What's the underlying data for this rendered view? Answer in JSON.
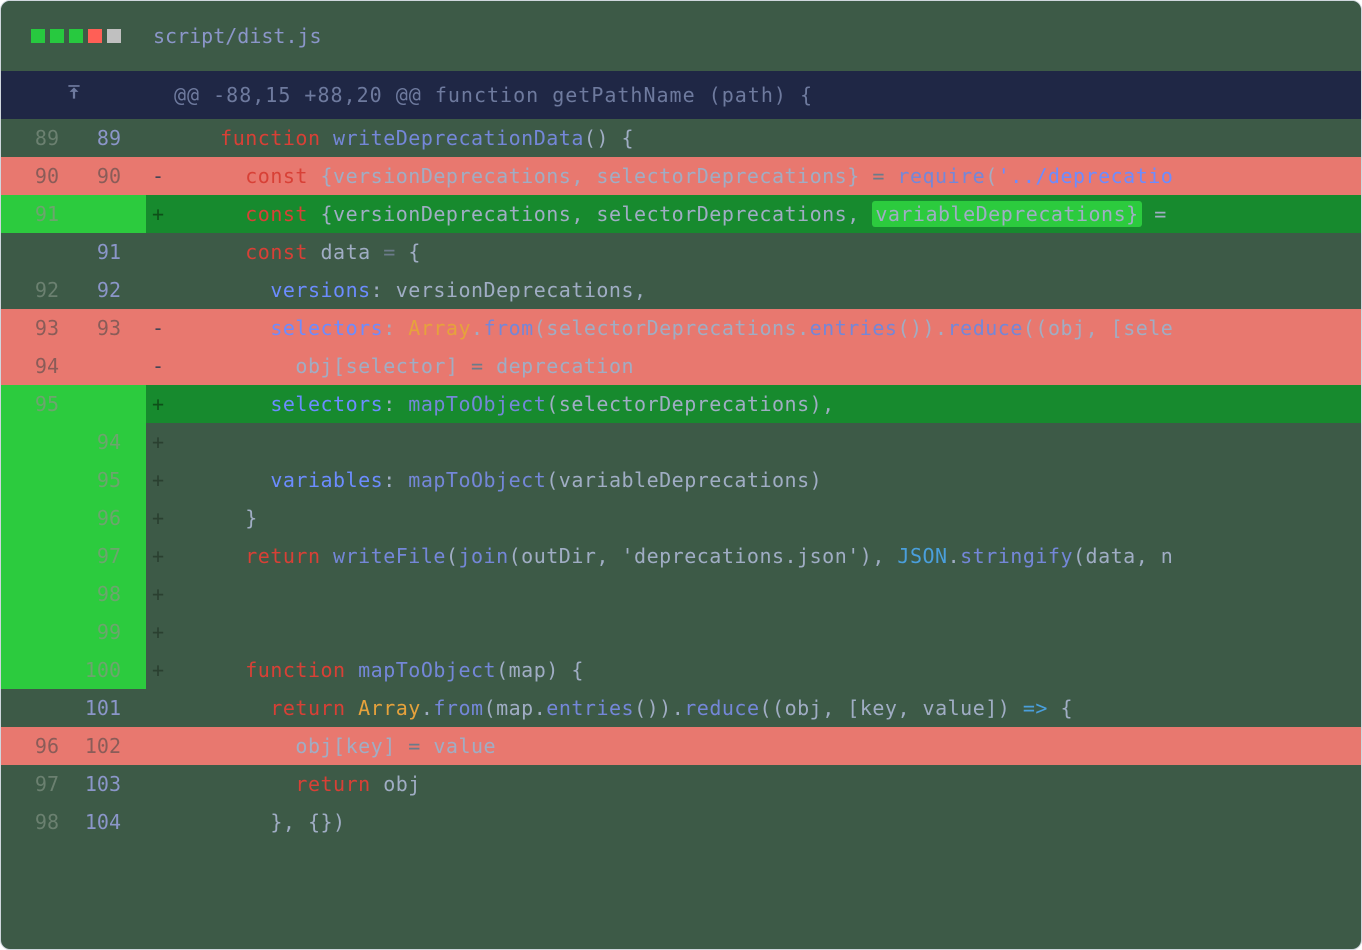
{
  "colors": {
    "window_bg": "#3d5a47",
    "hunk_bg": "#1f2745",
    "deletion_bg": "#e8786f",
    "addition_bg": "#178a2e",
    "addition_gutter": "#2ccb3e",
    "dot_green": "#27c93f",
    "dot_red": "#ff5f56",
    "dot_gray": "#c0c0c0",
    "filename_color": "#8b96c9"
  },
  "filename": "script/dist.js",
  "hunk_header": "@@ -88,15 +88,20 @@ function getPathName (path) {",
  "lines": [
    {
      "type": "context",
      "old": "89",
      "new": "89",
      "marker": " ",
      "tokens": [
        {
          "t": "    ",
          "c": "plain"
        },
        {
          "t": "function ",
          "c": "kw"
        },
        {
          "t": "writeDeprecationData",
          "c": "fn"
        },
        {
          "t": "() {",
          "c": "plain"
        }
      ]
    },
    {
      "type": "deletion",
      "old": "90",
      "new": "90",
      "marker": "-",
      "tokens": [
        {
          "t": "      ",
          "c": "plain"
        },
        {
          "t": "const ",
          "c": "kw"
        },
        {
          "t": "{versionDeprecations, selectorDeprecations} ",
          "c": "plain"
        },
        {
          "t": "= ",
          "c": "dim"
        },
        {
          "t": "require",
          "c": "fn"
        },
        {
          "t": "(",
          "c": "plain"
        },
        {
          "t": "'../deprecatio",
          "c": "prop"
        }
      ]
    },
    {
      "type": "addition",
      "old": "91",
      "new": "",
      "marker": "+",
      "tokens": [
        {
          "t": "      ",
          "c": "plain"
        },
        {
          "t": "const ",
          "c": "kw"
        },
        {
          "t": "{versionDeprecations, selectorDeprecations, ",
          "c": "plain"
        },
        {
          "t": "variableDeprecations}",
          "c": "plain",
          "hl": true
        },
        {
          "t": " =",
          "c": "plain"
        }
      ]
    },
    {
      "type": "context",
      "old": "",
      "new": "91",
      "marker": " ",
      "tokens": [
        {
          "t": "      ",
          "c": "plain"
        },
        {
          "t": "const ",
          "c": "kw"
        },
        {
          "t": "data ",
          "c": "plain"
        },
        {
          "t": "= ",
          "c": "dim"
        },
        {
          "t": "{",
          "c": "plain"
        }
      ]
    },
    {
      "type": "context",
      "old": "92",
      "new": "92",
      "marker": " ",
      "tokens": [
        {
          "t": "        ",
          "c": "plain"
        },
        {
          "t": "versions",
          "c": "prop"
        },
        {
          "t": ": versionDeprecations,",
          "c": "plain"
        }
      ]
    },
    {
      "type": "deletion",
      "old": "93",
      "new": "93",
      "marker": "-",
      "tokens": [
        {
          "t": "        ",
          "c": "plain"
        },
        {
          "t": "selectors",
          "c": "prop"
        },
        {
          "t": ": ",
          "c": "plain"
        },
        {
          "t": "Array",
          "c": "orange"
        },
        {
          "t": ".",
          "c": "plain"
        },
        {
          "t": "from",
          "c": "fn"
        },
        {
          "t": "(selectorDeprecations.",
          "c": "plain"
        },
        {
          "t": "entries",
          "c": "fn"
        },
        {
          "t": "()).",
          "c": "plain"
        },
        {
          "t": "reduce",
          "c": "fn"
        },
        {
          "t": "((obj, [sele",
          "c": "plain"
        }
      ]
    },
    {
      "type": "deletion",
      "old": "94",
      "new": "",
      "marker": "-",
      "tokens": [
        {
          "t": "          obj[selector] ",
          "c": "plain"
        },
        {
          "t": "= ",
          "c": "dim"
        },
        {
          "t": "deprecation",
          "c": "plain"
        }
      ]
    },
    {
      "type": "addition",
      "old": "95",
      "new": "",
      "marker": "+",
      "tokens": [
        {
          "t": "        ",
          "c": "plain"
        },
        {
          "t": "selectors",
          "c": "prop"
        },
        {
          "t": ": ",
          "c": "plain"
        },
        {
          "t": "mapToObject",
          "c": "fn"
        },
        {
          "t": "(selectorDeprecations),",
          "c": "plain"
        }
      ]
    },
    {
      "type": "addition-light",
      "old": "",
      "new": "94",
      "marker": "+",
      "tokens": []
    },
    {
      "type": "addition-light",
      "old": "",
      "new": "95",
      "marker": "+",
      "tokens": [
        {
          "t": "        ",
          "c": "plain"
        },
        {
          "t": "variables",
          "c": "prop"
        },
        {
          "t": ": ",
          "c": "plain"
        },
        {
          "t": "mapToObject",
          "c": "fn"
        },
        {
          "t": "(variableDeprecations)",
          "c": "plain"
        }
      ]
    },
    {
      "type": "addition-light",
      "old": "",
      "new": "96",
      "marker": "+",
      "tokens": [
        {
          "t": "      }",
          "c": "plain"
        }
      ]
    },
    {
      "type": "addition-light",
      "old": "",
      "new": "97",
      "marker": "+",
      "tokens": [
        {
          "t": "      ",
          "c": "plain"
        },
        {
          "t": "return ",
          "c": "kw"
        },
        {
          "t": "writeFile",
          "c": "fn"
        },
        {
          "t": "(",
          "c": "plain"
        },
        {
          "t": "join",
          "c": "fn"
        },
        {
          "t": "(outDir, ",
          "c": "plain"
        },
        {
          "t": "'deprecations.json'",
          "c": "plain"
        },
        {
          "t": "), ",
          "c": "plain"
        },
        {
          "t": "JSON",
          "c": "const"
        },
        {
          "t": ".",
          "c": "plain"
        },
        {
          "t": "stringify",
          "c": "fn"
        },
        {
          "t": "(data, n",
          "c": "plain"
        }
      ]
    },
    {
      "type": "addition-light",
      "old": "",
      "new": "98",
      "marker": "+",
      "tokens": []
    },
    {
      "type": "addition-light",
      "old": "",
      "new": "99",
      "marker": "+",
      "tokens": []
    },
    {
      "type": "addition-light",
      "old": "",
      "new": "100",
      "marker": "+",
      "tokens": [
        {
          "t": "      ",
          "c": "plain"
        },
        {
          "t": "function ",
          "c": "kw"
        },
        {
          "t": "mapToObject",
          "c": "fn"
        },
        {
          "t": "(map) {",
          "c": "plain"
        }
      ]
    },
    {
      "type": "context",
      "old": "",
      "new": "101",
      "marker": " ",
      "tokens": [
        {
          "t": "        ",
          "c": "plain"
        },
        {
          "t": "return ",
          "c": "kw"
        },
        {
          "t": "Array",
          "c": "orange"
        },
        {
          "t": ".",
          "c": "plain"
        },
        {
          "t": "from",
          "c": "fn"
        },
        {
          "t": "(map.",
          "c": "plain"
        },
        {
          "t": "entries",
          "c": "fn"
        },
        {
          "t": "()).",
          "c": "plain"
        },
        {
          "t": "reduce",
          "c": "fn"
        },
        {
          "t": "((obj, [key, value]) ",
          "c": "plain"
        },
        {
          "t": "=> ",
          "c": "const"
        },
        {
          "t": "{",
          "c": "plain"
        }
      ]
    },
    {
      "type": "mixed-red",
      "old": "96",
      "new": "102",
      "marker": " ",
      "tokens": [
        {
          "t": "          obj[key] ",
          "c": "plain"
        },
        {
          "t": "= ",
          "c": "dim"
        },
        {
          "t": "value",
          "c": "plain"
        }
      ]
    },
    {
      "type": "context",
      "old": "97",
      "new": "103",
      "marker": " ",
      "tokens": [
        {
          "t": "          ",
          "c": "plain"
        },
        {
          "t": "return ",
          "c": "kw"
        },
        {
          "t": "obj",
          "c": "plain"
        }
      ]
    },
    {
      "type": "context",
      "old": "98",
      "new": "104",
      "marker": " ",
      "tokens": [
        {
          "t": "        }, {})",
          "c": "plain"
        }
      ]
    }
  ]
}
